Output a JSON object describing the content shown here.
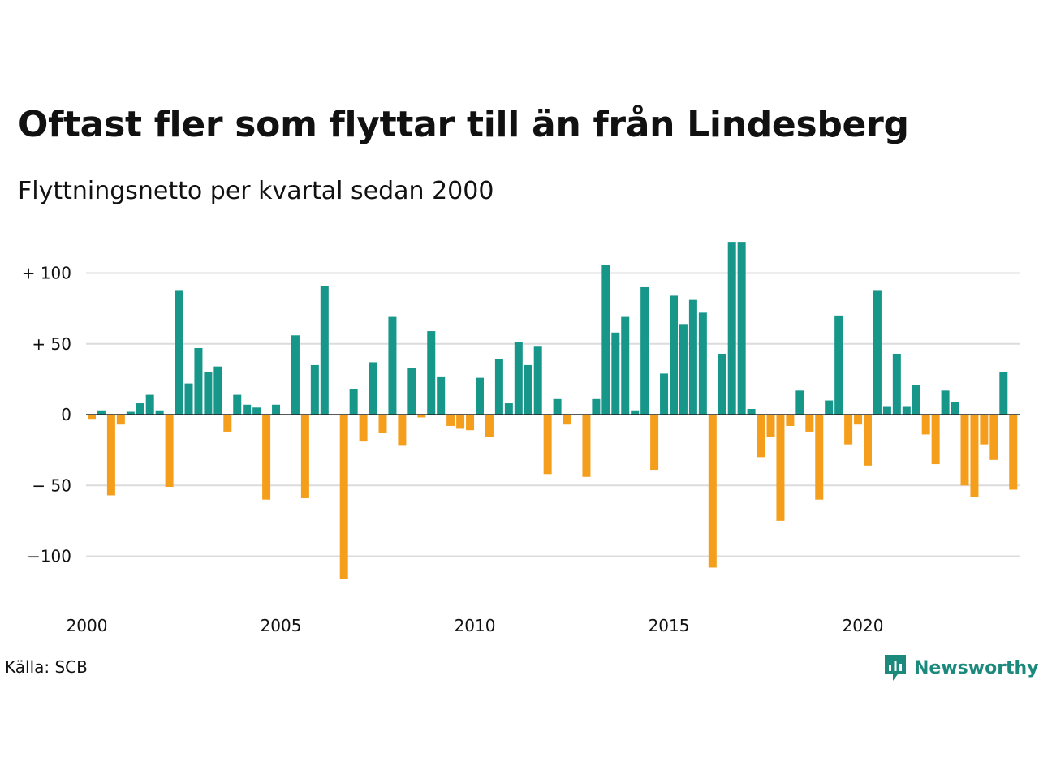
{
  "title": "Oftast fler som flyttar till än från Lindesberg",
  "subtitle": "Flyttningsnetto per kvartal sedan 2000",
  "source": "Källa: SCB",
  "brand": {
    "name": "Newsworthy",
    "icon": "newsworthy-logo-icon",
    "color": "#1b8a7d"
  },
  "colors": {
    "positive": "#17968a",
    "negative": "#f59e1c",
    "grid": "#dcdcdc",
    "zero_line": "#222222"
  },
  "chart_data": {
    "type": "bar",
    "title": "Oftast fler som flyttar till än från Lindesberg",
    "subtitle": "Flyttningsnetto per kvartal sedan 2000",
    "xlabel": "",
    "ylabel": "",
    "ylim": [
      -125,
      125
    ],
    "grid": true,
    "y_ticks": [
      {
        "value": 100,
        "label": "+ 100"
      },
      {
        "value": 50,
        "label": "+  50"
      },
      {
        "value": 0,
        "label": "0"
      },
      {
        "value": -50,
        "label": "− 50"
      },
      {
        "value": -100,
        "label": "−100"
      }
    ],
    "x_ticks": [
      "2000",
      "2005",
      "2010",
      "2015",
      "2020"
    ],
    "start_year": 2000,
    "categories": [
      "2000 K1",
      "2000 K2",
      "2000 K3",
      "2000 K4",
      "2001 K1",
      "2001 K2",
      "2001 K3",
      "2001 K4",
      "2002 K1",
      "2002 K2",
      "2002 K3",
      "2002 K4",
      "2003 K1",
      "2003 K2",
      "2003 K3",
      "2003 K4",
      "2004 K1",
      "2004 K2",
      "2004 K3",
      "2004 K4",
      "2005 K1",
      "2005 K2",
      "2005 K3",
      "2005 K4",
      "2006 K1",
      "2006 K2",
      "2006 K3",
      "2006 K4",
      "2007 K1",
      "2007 K2",
      "2007 K3",
      "2007 K4",
      "2008 K1",
      "2008 K2",
      "2008 K3",
      "2008 K4",
      "2009 K1",
      "2009 K2",
      "2009 K3",
      "2009 K4",
      "2010 K1",
      "2010 K2",
      "2010 K3",
      "2010 K4",
      "2011 K1",
      "2011 K2",
      "2011 K3",
      "2011 K4",
      "2012 K1",
      "2012 K2",
      "2012 K3",
      "2012 K4",
      "2013 K1",
      "2013 K2",
      "2013 K3",
      "2013 K4",
      "2014 K1",
      "2014 K2",
      "2014 K3",
      "2014 K4",
      "2015 K1",
      "2015 K2",
      "2015 K3",
      "2015 K4",
      "2016 K1",
      "2016 K2",
      "2016 K3",
      "2016 K4",
      "2017 K1",
      "2017 K2",
      "2017 K3",
      "2017 K4",
      "2018 K1",
      "2018 K2",
      "2018 K3",
      "2018 K4",
      "2019 K1",
      "2019 K2",
      "2019 K3",
      "2019 K4",
      "2020 K1",
      "2020 K2",
      "2020 K3",
      "2020 K4",
      "2021 K1",
      "2021 K2",
      "2021 K3",
      "2021 K4",
      "2022 K1",
      "2022 K2",
      "2022 K3",
      "2022 K4",
      "2023 K1",
      "2023 K2",
      "2023 K3",
      "2023 K4",
      "2024 K1"
    ],
    "values": [
      -3,
      3,
      -57,
      -7,
      2,
      8,
      14,
      3,
      -51,
      88,
      22,
      47,
      30,
      34,
      -12,
      14,
      7,
      5,
      -60,
      7,
      0,
      56,
      -59,
      35,
      91,
      0,
      -116,
      18,
      -19,
      37,
      -13,
      69,
      -22,
      33,
      -2,
      59,
      27,
      -8,
      -10,
      -11,
      26,
      -16,
      39,
      8,
      51,
      35,
      48,
      -42,
      11,
      -7,
      0,
      -44,
      11,
      106,
      58,
      69,
      3,
      90,
      -39,
      29,
      84,
      64,
      81,
      72,
      -108,
      43,
      122,
      122,
      4,
      -30,
      -16,
      -75,
      -8,
      17,
      -12,
      -60,
      10,
      70,
      -21,
      -7,
      -36,
      88,
      6,
      43,
      6,
      21,
      -14,
      -35,
      17,
      9,
      -50,
      -58,
      -21,
      -32,
      30,
      -53,
      0
    ]
  }
}
